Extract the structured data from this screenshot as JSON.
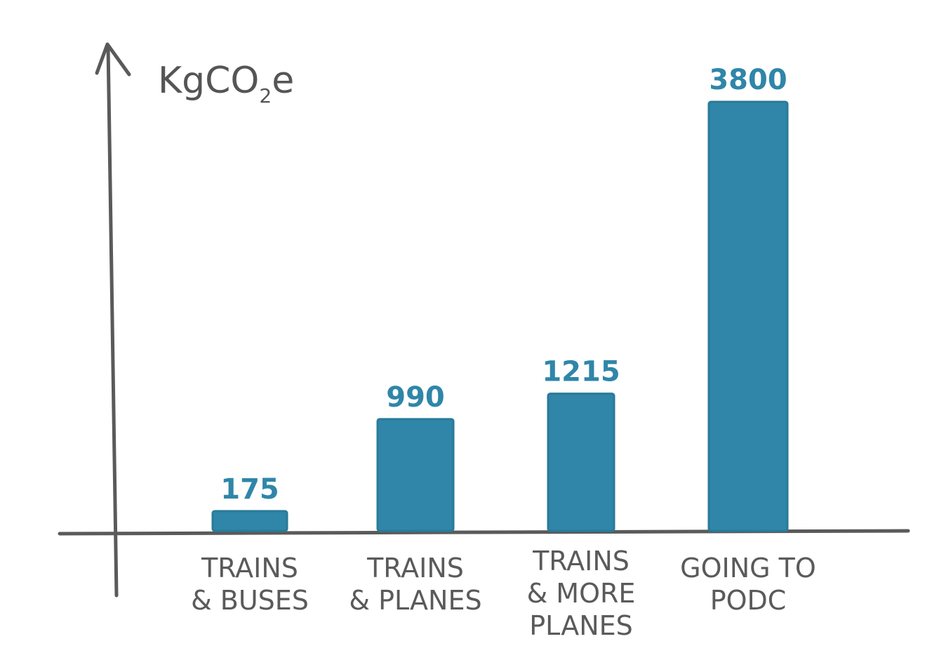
{
  "chart_data": {
    "type": "bar",
    "categories": [
      [
        "TRAINS",
        "& BUSES"
      ],
      [
        "TRAINS",
        "& PLANES"
      ],
      [
        "TRAINS",
        "& MORE",
        "PLANES"
      ],
      [
        "GOING TO",
        "PODC"
      ]
    ],
    "values": [
      175,
      990,
      1215,
      3800
    ],
    "data_labels": [
      "175",
      "990",
      "1215",
      "3800"
    ],
    "ylabel": {
      "main": "KgCO",
      "sub": "2",
      "tail": "e"
    },
    "ylim": [
      0,
      3800
    ],
    "grid": false,
    "legend": "none",
    "colors": {
      "bar": "#2f86a8",
      "bar_edge": "#2a7a99",
      "label": "#2f86a8",
      "axis": "#5a5a5a"
    }
  }
}
